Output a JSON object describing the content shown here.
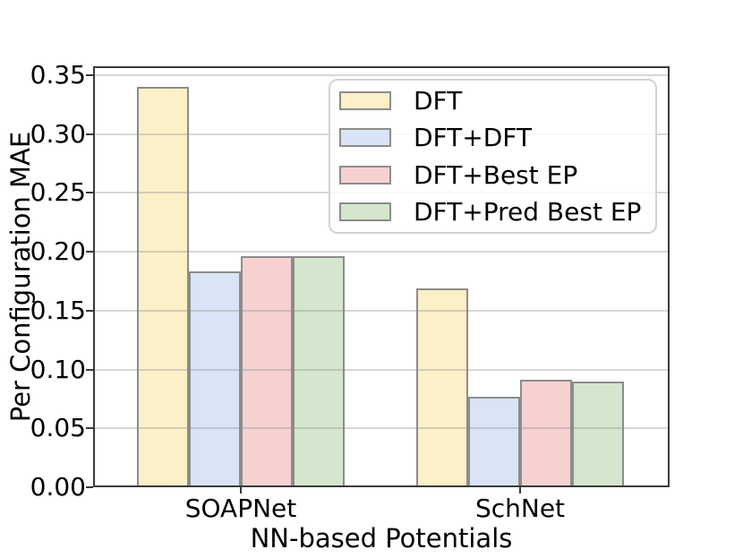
{
  "chart_data": {
    "type": "bar",
    "title": "",
    "xlabel": "NN-based Potentials",
    "ylabel": "Per Configuration MAE",
    "categories": [
      "SOAPNet",
      "SchNet"
    ],
    "series": [
      {
        "name": "DFT",
        "fill": "#FCF0C8",
        "values": [
          0.34,
          0.169
        ]
      },
      {
        "name": "DFT+DFT",
        "fill": "#D9E5F6",
        "values": [
          0.183,
          0.077
        ]
      },
      {
        "name": "DFT+Best EP",
        "fill": "#F6D1D0",
        "values": [
          0.196,
          0.091
        ]
      },
      {
        "name": "DFT+Pred Best EP",
        "fill": "#D4E6CD",
        "values": [
          0.196,
          0.09
        ]
      }
    ],
    "ylim": [
      0,
      0.3576
    ],
    "yticks": [
      "0.00",
      "0.05",
      "0.10",
      "0.15",
      "0.20",
      "0.25",
      "0.30",
      "0.35"
    ],
    "grid": true,
    "grid_color": "#d9d9d9",
    "legend_position": "upper right",
    "bar_edge_color": "#8c8c8c",
    "axis_color": "#3a3a3a",
    "background_color": "#ffffff"
  }
}
